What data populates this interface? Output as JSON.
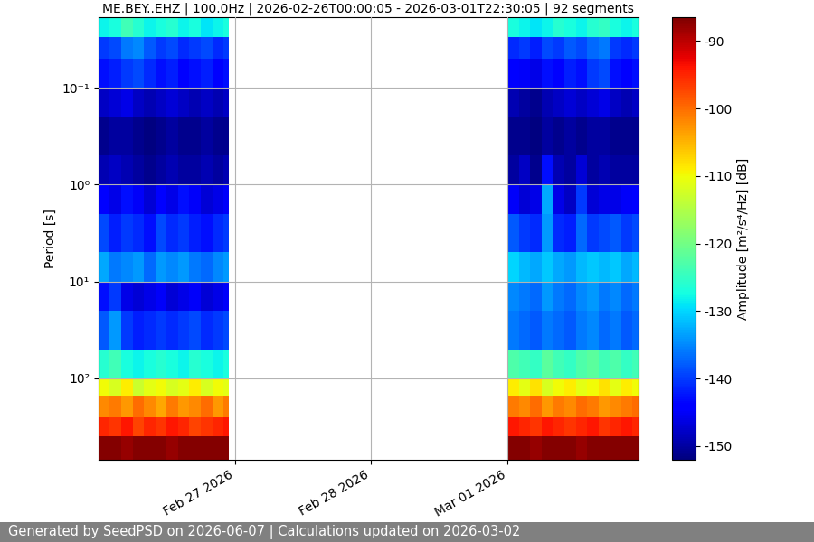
{
  "chart_data": {
    "type": "heatmap",
    "title": "ME.BEY..EHZ | 100.0Hz | 2026-02-26T00:00:05 - 2026-03-01T22:30:05 | 92 segments",
    "y_label": "Period [s]",
    "footer": "Generated by SeedPSD on 2026-06-07 | Calculations updated on 2026-03-02",
    "log": "y",
    "grid": true,
    "xlim": [
      "2026-02-26T00:00",
      "2026-03-01T23:00"
    ],
    "xticks": [
      {
        "value": "2026-02-27T00:00",
        "label": "Feb 27 2026"
      },
      {
        "value": "2026-02-28T00:00",
        "label": "Feb 28 2026"
      },
      {
        "value": "2026-03-01T00:00",
        "label": "Mar 01 2026"
      }
    ],
    "ylim": [
      690,
      0.0187
    ],
    "yticks": [
      {
        "value": 0.1,
        "label": "10⁻¹"
      },
      {
        "value": 1,
        "label": "10⁰"
      },
      {
        "value": 10,
        "label": "10¹"
      },
      {
        "value": 100,
        "label": "10²"
      }
    ],
    "x_edges": [
      "2026-02-26T00:00",
      "2026-02-26T02:00",
      "2026-02-26T04:00",
      "2026-02-26T06:00",
      "2026-02-26T08:00",
      "2026-02-26T10:00",
      "2026-02-26T12:00",
      "2026-02-26T14:00",
      "2026-02-26T16:00",
      "2026-02-26T18:00",
      "2026-02-26T20:00",
      "2026-02-26T22:00",
      "2026-02-26T23:00",
      "2026-03-01T00:00",
      "2026-03-01T02:00",
      "2026-03-01T04:00",
      "2026-03-01T06:00",
      "2026-03-01T08:00",
      "2026-03-01T10:00",
      "2026-03-01T12:00",
      "2026-03-01T14:00",
      "2026-03-01T16:00",
      "2026-03-01T18:00",
      "2026-03-01T20:00",
      "2026-03-01T22:00",
      "2026-03-01T23:00"
    ],
    "y_edges": [
      0.0187,
      0.03,
      0.05,
      0.1,
      0.2,
      0.5,
      1,
      2,
      5,
      10,
      20,
      50,
      100,
      150,
      250,
      400,
      690
    ],
    "cells": [
      [
        -128,
        -127,
        -124,
        -126,
        -128,
        -127,
        -126,
        -128,
        -127,
        -129,
        -128,
        -127,
        null,
        -127,
        -128,
        -129,
        -128,
        -126,
        -127,
        -128,
        -126,
        -125,
        -127,
        -128,
        -127
      ],
      [
        -140,
        -139,
        -136,
        -135,
        -138,
        -140,
        -139,
        -141,
        -140,
        -139,
        -141,
        -140,
        null,
        -141,
        -140,
        -142,
        -139,
        -140,
        -138,
        -139,
        -137,
        -136,
        -140,
        -141,
        -140
      ],
      [
        -143,
        -142,
        -140,
        -139,
        -141,
        -143,
        -142,
        -144,
        -143,
        -142,
        -144,
        -143,
        null,
        -144,
        -145,
        -146,
        -143,
        -144,
        -142,
        -143,
        -140,
        -139,
        -143,
        -144,
        -143
      ],
      [
        -148,
        -147,
        -146,
        -148,
        -149,
        -148,
        -147,
        -148,
        -149,
        -148,
        -149,
        -148,
        null,
        -149,
        -150,
        -151,
        -149,
        -148,
        -147,
        -148,
        -147,
        -146,
        -148,
        -149,
        -148
      ],
      [
        -151,
        -150,
        -150,
        -151,
        -152,
        -151,
        -150,
        -151,
        -151,
        -150,
        -151,
        -151,
        null,
        -151,
        -151,
        -152,
        -150,
        -151,
        -150,
        -151,
        -150,
        -150,
        -151,
        -151,
        -151
      ],
      [
        -149,
        -148,
        -149,
        -150,
        -151,
        -150,
        -149,
        -150,
        -150,
        -149,
        -150,
        -149,
        null,
        -150,
        -148,
        -151,
        -143,
        -149,
        -150,
        -147,
        -150,
        -149,
        -150,
        -150,
        -150
      ],
      [
        -144,
        -146,
        -143,
        -145,
        -147,
        -144,
        -146,
        -143,
        -145,
        -147,
        -146,
        -145,
        null,
        -145,
        -147,
        -146,
        -133,
        -146,
        -148,
        -140,
        -147,
        -146,
        -146,
        -145,
        -144
      ],
      [
        -139,
        -142,
        -140,
        -141,
        -143,
        -139,
        -141,
        -140,
        -142,
        -143,
        -141,
        -140,
        null,
        -138,
        -140,
        -141,
        -134,
        -141,
        -142,
        -137,
        -140,
        -139,
        -138,
        -140,
        -139
      ],
      [
        -133,
        -136,
        -135,
        -134,
        -137,
        -134,
        -135,
        -134,
        -136,
        -137,
        -135,
        -134,
        null,
        -130,
        -132,
        -133,
        -131,
        -133,
        -134,
        -132,
        -131,
        -132,
        -131,
        -133,
        -132
      ],
      [
        -143,
        -140,
        -146,
        -147,
        -146,
        -145,
        -147,
        -146,
        -145,
        -147,
        -146,
        -145,
        null,
        -135,
        -136,
        -137,
        -134,
        -136,
        -137,
        -135,
        -134,
        -136,
        -135,
        -137,
        -136
      ],
      [
        -138,
        -134,
        -140,
        -142,
        -141,
        -140,
        -141,
        -140,
        -139,
        -141,
        -140,
        -139,
        null,
        -136,
        -137,
        -138,
        -136,
        -137,
        -138,
        -136,
        -135,
        -137,
        -136,
        -138,
        -137
      ],
      [
        -126,
        -124,
        -127,
        -128,
        -127,
        -126,
        -127,
        -128,
        -126,
        -127,
        -128,
        -127,
        null,
        -123,
        -124,
        -125,
        -122,
        -124,
        -125,
        -123,
        -122,
        -124,
        -123,
        -125,
        -124
      ],
      [
        -110,
        -112,
        -109,
        -113,
        -111,
        -110,
        -112,
        -111,
        -109,
        -112,
        -110,
        -111,
        null,
        -109,
        -111,
        -108,
        -112,
        -110,
        -109,
        -111,
        -110,
        -108,
        -111,
        -109,
        -110
      ],
      [
        -102,
        -101,
        -103,
        -100,
        -102,
        -104,
        -101,
        -103,
        -102,
        -100,
        -103,
        -101,
        null,
        -101,
        -102,
        -100,
        -103,
        -101,
        -102,
        -100,
        -101,
        -103,
        -102,
        -101,
        -100
      ],
      [
        -95,
        -96,
        -94,
        -97,
        -95,
        -96,
        -94,
        -95,
        -97,
        -96,
        -95,
        -94,
        null,
        -94,
        -95,
        -96,
        -94,
        -95,
        -96,
        -95,
        -94,
        -96,
        -95,
        -94,
        -95
      ],
      [
        -87,
        -87,
        -88,
        -87,
        -87,
        -87,
        -88,
        -87,
        -87,
        -87,
        -87,
        -87,
        null,
        -87,
        -87,
        -88,
        -87,
        -87,
        -87,
        -88,
        -87,
        -87,
        -87,
        -87,
        -87
      ]
    ],
    "colorbar": {
      "label": "Amplitude [m²/s⁴/Hz] [dB]",
      "lim": [
        -152,
        -86.5
      ],
      "ticks": [
        -150,
        -140,
        -130,
        -120,
        -110,
        -100,
        -90
      ]
    }
  }
}
